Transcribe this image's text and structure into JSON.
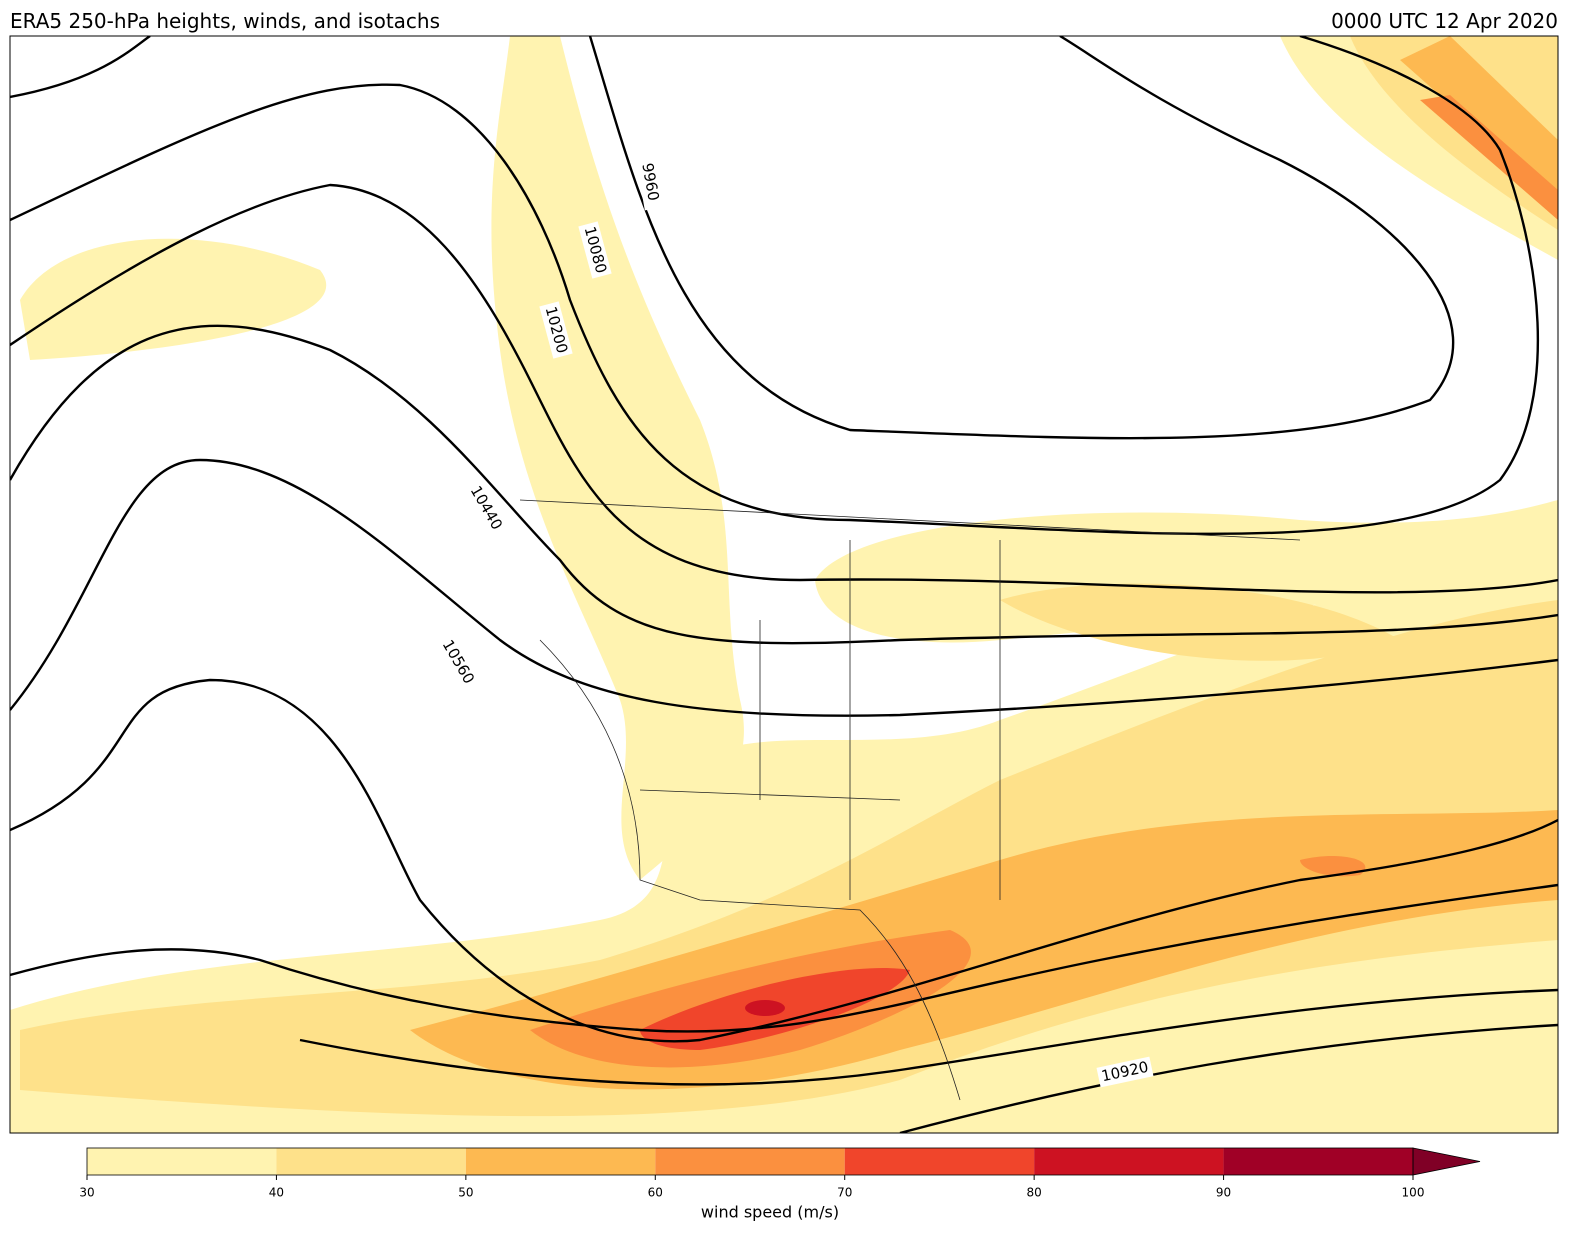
{
  "header": {
    "title": "ERA5 250-hPa heights, winds, and isotachs",
    "valid_time": "0000 UTC 12 Apr 2020"
  },
  "map": {
    "contour_labels": [
      9960,
      10080,
      10200,
      10440,
      10560,
      10920
    ]
  },
  "colorbar": {
    "label": "wind speed (m/s)",
    "ticks": [
      30,
      40,
      50,
      60,
      70,
      80,
      90,
      100
    ],
    "colors": [
      "#fff3b0",
      "#fee18a",
      "#fdb951",
      "#fb903f",
      "#f0452b",
      "#cd1222",
      "#a00026",
      "#800026"
    ],
    "extend": "max"
  }
}
